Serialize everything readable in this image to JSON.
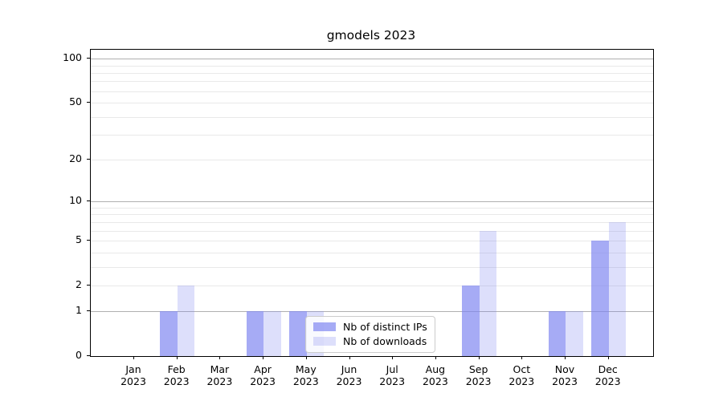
{
  "chart_data": {
    "type": "bar",
    "title": "gmodels 2023",
    "months": [
      "Jan",
      "Feb",
      "Mar",
      "Apr",
      "May",
      "Jun",
      "Jul",
      "Aug",
      "Sep",
      "Oct",
      "Nov",
      "Dec"
    ],
    "year": "2023",
    "series": [
      {
        "name": "Nb of distinct IPs",
        "color": "#7c83f0",
        "fill": "rgba(124,131,240,0.68)",
        "values": [
          0,
          1,
          0,
          1,
          1,
          0,
          0,
          0,
          2,
          0,
          1,
          5
        ]
      },
      {
        "name": "Nb of downloads",
        "color": "#7c83f0",
        "fill": "rgba(124,131,240,0.26)",
        "values": [
          0,
          2,
          0,
          1,
          1,
          0,
          0,
          0,
          6,
          0,
          1,
          7
        ]
      }
    ],
    "yscale": "log1p",
    "ylim": [
      0,
      115
    ],
    "yticks": [
      0,
      1,
      2,
      5,
      10,
      20,
      50,
      100
    ],
    "major_gridlines": [
      1,
      10,
      100
    ],
    "minor_gridlines": [
      3,
      4,
      6,
      7,
      8,
      9,
      30,
      40,
      60,
      70,
      80,
      90
    ],
    "grid": true,
    "legend_position": "lower center",
    "axis_color": "#000000",
    "major_grid_color": "#b0b0b0",
    "minor_grid_color": "#e9e9e9"
  }
}
